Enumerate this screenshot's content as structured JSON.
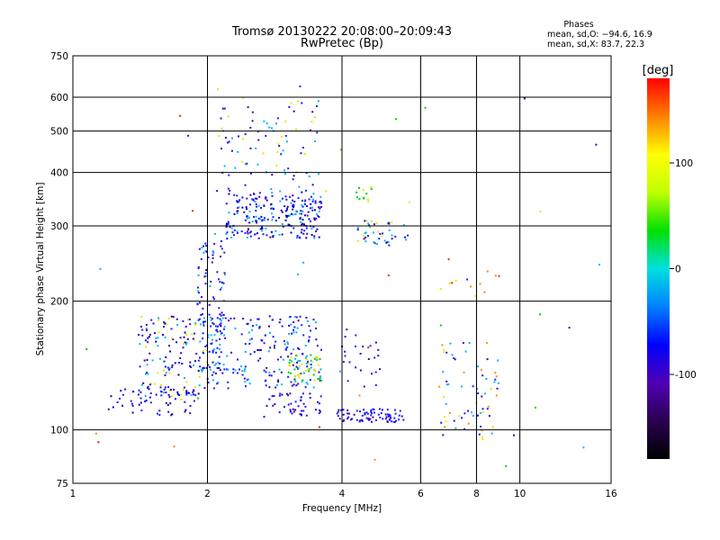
{
  "chart_data": {
    "type": "scatter",
    "title": "Tromsø 20130222 20:08:00–20:09:43",
    "subtitle": "RwPretec (Bp)",
    "xlabel": "Frequency [MHz]",
    "ylabel": "Stationary phase Virtual Height [km]",
    "x_scale": "log",
    "y_scale": "log",
    "xlim": [
      1,
      16
    ],
    "ylim": [
      75,
      750
    ],
    "x_ticks": [
      1,
      2,
      4,
      6,
      8,
      10,
      16
    ],
    "y_ticks": [
      75,
      100,
      200,
      300,
      400,
      500,
      600,
      750
    ],
    "grid": true,
    "stats": {
      "header": "Phases",
      "line1": "mean, sd,O: −94.6, 16.9",
      "line2": "mean, sd,X: 83.7, 22.3"
    },
    "colorbar": {
      "label": "[deg]",
      "range": [
        -180,
        180
      ],
      "ticks": [
        100,
        0,
        -100
      ],
      "colors": [
        "#000000",
        "#2a0050",
        "#5000b4",
        "#0000ff",
        "#0080ff",
        "#00e0e0",
        "#00e000",
        "#c0ff00",
        "#ffff00",
        "#ff8000",
        "#ff0000"
      ]
    },
    "point_colors": {
      "blue": "#1a1aff",
      "purple": "#3c00b4",
      "darkblue": "#0000c0",
      "cyan": "#00b4ff",
      "yellow": "#e6e600",
      "green": "#00cc00",
      "orange": "#ff8c00",
      "red": "#e62800"
    },
    "clusters": [
      {
        "x": [
          2.2,
          3.6
        ],
        "y": [
          280,
          360
        ],
        "n": 240,
        "colors": [
          "blue",
          "blue",
          "darkblue",
          "purple",
          "cyan"
        ]
      },
      {
        "x": [
          2.1,
          3.6
        ],
        "y": [
          360,
          600
        ],
        "n": 90,
        "colors": [
          "blue",
          "purple",
          "cyan",
          "yellow"
        ]
      },
      {
        "x": [
          1.9,
          2.2
        ],
        "y": [
          135,
          280
        ],
        "n": 110,
        "colors": [
          "blue",
          "blue",
          "purple",
          "cyan"
        ]
      },
      {
        "x": [
          1.4,
          2.0
        ],
        "y": [
          120,
          185
        ],
        "n": 150,
        "colors": [
          "blue",
          "purple",
          "darkblue",
          "yellow",
          "cyan"
        ]
      },
      {
        "x": [
          2.0,
          3.6
        ],
        "y": [
          125,
          185
        ],
        "n": 200,
        "colors": [
          "blue",
          "blue",
          "purple",
          "cyan"
        ]
      },
      {
        "x": [
          3.0,
          3.6
        ],
        "y": [
          128,
          150
        ],
        "n": 60,
        "colors": [
          "yellow",
          "yellow",
          "green",
          "cyan"
        ]
      },
      {
        "x": [
          1.2,
          1.9
        ],
        "y": [
          108,
          125
        ],
        "n": 60,
        "colors": [
          "blue",
          "purple",
          "darkblue"
        ]
      },
      {
        "x": [
          2.7,
          3.6
        ],
        "y": [
          108,
          122
        ],
        "n": 45,
        "colors": [
          "purple",
          "blue"
        ]
      },
      {
        "x": [
          3.9,
          5.5
        ],
        "y": [
          104,
          112
        ],
        "n": 80,
        "colors": [
          "blue",
          "blue",
          "purple"
        ]
      },
      {
        "x": [
          4.3,
          5.7
        ],
        "y": [
          270,
          310
        ],
        "n": 45,
        "colors": [
          "blue",
          "purple",
          "yellow",
          "cyan"
        ]
      },
      {
        "x": [
          4.3,
          4.7
        ],
        "y": [
          340,
          370
        ],
        "n": 12,
        "colors": [
          "yellow",
          "green"
        ]
      },
      {
        "x": [
          4.0,
          4.9
        ],
        "y": [
          125,
          175
        ],
        "n": 25,
        "colors": [
          "blue",
          "purple"
        ]
      },
      {
        "x": [
          6.5,
          9.0
        ],
        "y": [
          95,
          160
        ],
        "n": 70,
        "colors": [
          "blue",
          "yellow",
          "orange",
          "purple",
          "cyan"
        ]
      },
      {
        "x": [
          6.5,
          9.0
        ],
        "y": [
          205,
          235
        ],
        "n": 12,
        "colors": [
          "orange",
          "blue",
          "red",
          "yellow"
        ]
      },
      {
        "x": [
          1.0,
          16.0
        ],
        "y": [
          80,
          660
        ],
        "n": 45,
        "colors": [
          "blue",
          "yellow",
          "orange",
          "cyan",
          "green",
          "red",
          "purple"
        ]
      }
    ]
  }
}
